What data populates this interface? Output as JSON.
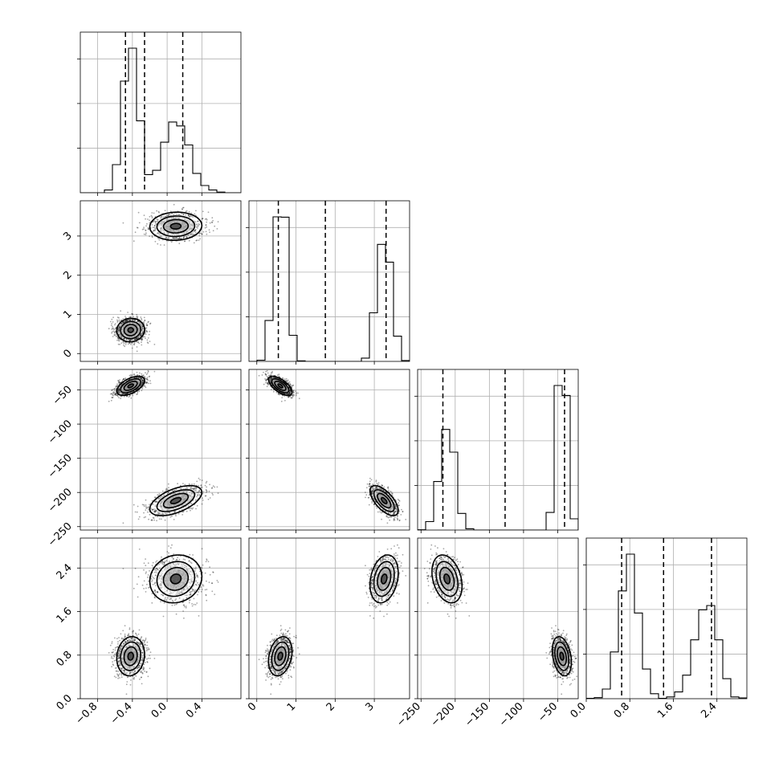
{
  "chart_data": {
    "type": "corner",
    "grid": true,
    "colors": {
      "points": "#000000",
      "density": "#000000",
      "grid": "#b0b0b0",
      "background": "#ffffff"
    },
    "parameters": [
      {
        "range": [
          -1.0,
          0.85
        ],
        "ticks": [
          {
            "value": -0.8,
            "label": "−0.8"
          },
          {
            "value": -0.4,
            "label": "−0.4"
          },
          {
            "value": 0.0,
            "label": "0.0"
          },
          {
            "value": 0.4,
            "label": "0.4"
          }
        ],
        "quantiles": [
          -0.48,
          -0.26,
          0.18
        ],
        "modes": [
          {
            "mean": -0.42,
            "sd": 0.08,
            "weight": 0.55
          },
          {
            "mean": 0.1,
            "sd": 0.15,
            "weight": 0.45
          }
        ]
      },
      {
        "range": [
          -0.2,
          3.9
        ],
        "ticks": [
          {
            "value": 0,
            "label": "0"
          },
          {
            "value": 1,
            "label": "1"
          },
          {
            "value": 2,
            "label": "2"
          },
          {
            "value": 3,
            "label": "3"
          }
        ],
        "quantiles": [
          0.55,
          1.75,
          3.3
        ],
        "modes": [
          {
            "mean": 0.6,
            "sd": 0.15,
            "weight": 0.55
          },
          {
            "mean": 3.25,
            "sd": 0.18,
            "weight": 0.45
          }
        ]
      },
      {
        "range": [
          -255,
          -20
        ],
        "ticks": [
          {
            "value": -250,
            "label": "−250"
          },
          {
            "value": -200,
            "label": "−200"
          },
          {
            "value": -150,
            "label": "−150"
          },
          {
            "value": -100,
            "label": "−100"
          },
          {
            "value": -50,
            "label": "−50"
          }
        ],
        "quantiles": [
          -218,
          -127,
          -40
        ],
        "modes": [
          {
            "mean": -44,
            "sd": 7,
            "weight": 0.55
          },
          {
            "mean": -212,
            "sd": 11,
            "weight": 0.45
          }
        ]
      },
      {
        "range": [
          0.0,
          2.95
        ],
        "ticks": [
          {
            "value": 0.0,
            "label": "0.0"
          },
          {
            "value": 0.8,
            "label": "0.8"
          },
          {
            "value": 1.6,
            "label": "1.6"
          },
          {
            "value": 2.4,
            "label": "2.4"
          }
        ],
        "quantiles": [
          0.65,
          1.42,
          2.3
        ],
        "modes": [
          {
            "mean": 0.78,
            "sd": 0.18,
            "weight": 0.55
          },
          {
            "mean": 2.2,
            "sd": 0.22,
            "weight": 0.45
          }
        ]
      }
    ],
    "joint_clusters": [
      {
        "centers": [
          -0.42,
          0.6,
          -44,
          0.78
        ],
        "weight": 0.55
      },
      {
        "centers": [
          0.1,
          3.25,
          -212,
          2.2
        ],
        "weight": 0.45
      }
    ]
  }
}
